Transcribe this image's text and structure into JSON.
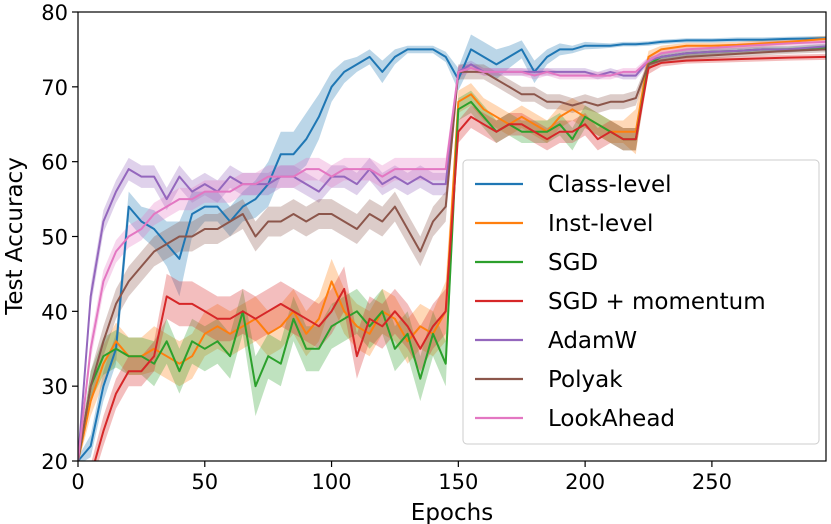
{
  "chart_data": {
    "type": "line",
    "title": "",
    "xlabel": "Epochs",
    "ylabel": "Test Accuracy",
    "xlim": [
      0,
      295
    ],
    "ylim": [
      20,
      80
    ],
    "xticks": [
      0,
      50,
      100,
      150,
      200,
      250
    ],
    "yticks": [
      20,
      30,
      40,
      50,
      60,
      70,
      80
    ],
    "grid": false,
    "legend_position": "center-right",
    "series": [
      {
        "name": "Class-level",
        "color": "#1f77b4",
        "x": [
          0,
          5,
          10,
          15,
          20,
          25,
          30,
          35,
          40,
          45,
          50,
          55,
          60,
          65,
          70,
          75,
          80,
          85,
          90,
          95,
          100,
          105,
          110,
          115,
          120,
          125,
          130,
          135,
          140,
          145,
          150,
          155,
          160,
          165,
          170,
          175,
          180,
          185,
          190,
          195,
          200,
          205,
          210,
          215,
          220,
          225,
          230,
          240,
          250,
          260,
          270,
          280,
          295
        ],
        "y": [
          20,
          22,
          30,
          35,
          54,
          52,
          51,
          49,
          47,
          53,
          54,
          54,
          52,
          54,
          55,
          57,
          61,
          61,
          63,
          66,
          70,
          72,
          73,
          74,
          72,
          74,
          75,
          75,
          75,
          74,
          71,
          75,
          74,
          73,
          74,
          75,
          72,
          74,
          75,
          75,
          75.5,
          75.5,
          75.5,
          75.7,
          75.7,
          75.8,
          76,
          76.2,
          76.2,
          76.3,
          76.3,
          76.4,
          76.5
        ],
        "band": [
          0.5,
          1.5,
          2,
          2,
          2,
          2,
          2.5,
          3,
          5,
          3,
          2,
          2,
          2,
          2,
          2.5,
          3,
          3,
          3,
          3.5,
          3,
          2,
          1.5,
          1,
          1,
          1.5,
          1,
          0.5,
          0.5,
          0.5,
          0.7,
          1.5,
          2,
          2,
          2,
          1.5,
          1.2,
          1.5,
          1,
          0.8,
          0.5,
          0.5,
          0.4,
          0.3,
          0.3,
          0.3,
          0.3,
          0.3,
          0.3,
          0.3,
          0.3,
          0.3,
          0.3,
          0.3
        ]
      },
      {
        "name": "Inst-level",
        "color": "#ff7f0e",
        "x": [
          0,
          5,
          10,
          15,
          20,
          25,
          30,
          35,
          40,
          45,
          50,
          55,
          60,
          65,
          70,
          75,
          80,
          85,
          90,
          95,
          100,
          105,
          110,
          115,
          120,
          125,
          130,
          135,
          140,
          145,
          150,
          155,
          160,
          165,
          170,
          175,
          180,
          185,
          190,
          195,
          200,
          205,
          210,
          215,
          220,
          225,
          230,
          240,
          250,
          260,
          270,
          280,
          295
        ],
        "y": [
          20,
          28,
          33,
          36,
          34,
          34,
          35,
          34,
          33,
          34,
          37,
          38,
          37,
          38,
          39,
          37,
          38,
          40,
          37,
          39,
          44,
          40,
          38,
          37,
          40,
          39,
          36,
          38,
          37,
          40,
          68,
          69,
          67,
          66,
          65,
          66,
          65,
          64,
          66,
          67,
          66,
          65,
          64,
          64,
          64,
          74,
          75,
          75.5,
          75.5,
          75.6,
          75.8,
          76,
          76.4
        ],
        "band": [
          0.5,
          2,
          2.5,
          2.5,
          2.5,
          2.5,
          3,
          3,
          3,
          3,
          3,
          3,
          3,
          3,
          3,
          3,
          3,
          3,
          3,
          3,
          3,
          3,
          3,
          3,
          3,
          3,
          3,
          3,
          3,
          4,
          1.5,
          1.5,
          1.5,
          1.5,
          1.5,
          1.5,
          1.5,
          1.5,
          1.5,
          1.5,
          1.5,
          1.5,
          1.5,
          1.5,
          3,
          0.8,
          0.5,
          0.4,
          0.4,
          0.4,
          0.4,
          0.4,
          0.4
        ]
      },
      {
        "name": "SGD",
        "color": "#2ca02c",
        "x": [
          0,
          5,
          10,
          15,
          20,
          25,
          30,
          35,
          40,
          45,
          50,
          55,
          60,
          65,
          70,
          75,
          80,
          85,
          90,
          95,
          100,
          105,
          110,
          115,
          120,
          125,
          130,
          135,
          140,
          145,
          150,
          155,
          160,
          165,
          170,
          175,
          180,
          185,
          190,
          195,
          200,
          205,
          210,
          215,
          220,
          225,
          230,
          240,
          250,
          260,
          270,
          280,
          295
        ],
        "y": [
          20,
          30,
          34,
          35,
          34,
          34,
          33,
          36,
          32,
          36,
          35,
          36,
          34,
          40,
          30,
          34,
          33,
          39,
          35,
          35,
          38,
          39,
          40,
          38,
          40,
          35,
          37,
          31,
          37,
          33,
          67,
          68,
          66,
          64,
          65,
          64,
          64,
          64,
          65,
          63,
          66,
          65,
          64,
          63,
          63,
          73,
          74,
          74.5,
          74.7,
          74.8,
          75,
          75,
          75.3
        ],
        "band": [
          0.5,
          2,
          2.5,
          2.5,
          2.5,
          2.5,
          3,
          3,
          3,
          3,
          3,
          3,
          3,
          3,
          4,
          3,
          3,
          3,
          3,
          3,
          3,
          3,
          3,
          3,
          3,
          3,
          3,
          3,
          3,
          3,
          1.5,
          1.5,
          1.5,
          1.5,
          1.5,
          1.5,
          1.5,
          1.5,
          1.5,
          1.5,
          1.5,
          1.5,
          1.5,
          1.5,
          1.5,
          0.8,
          0.5,
          0.4,
          0.4,
          0.4,
          0.4,
          0.4,
          0.4
        ]
      },
      {
        "name": "SGD + momentum",
        "color": "#d62728",
        "x": [
          0,
          5,
          10,
          15,
          20,
          25,
          30,
          35,
          40,
          45,
          50,
          55,
          60,
          65,
          70,
          75,
          80,
          85,
          90,
          95,
          100,
          105,
          110,
          115,
          120,
          125,
          130,
          135,
          140,
          145,
          150,
          155,
          160,
          165,
          170,
          175,
          180,
          185,
          190,
          195,
          200,
          205,
          210,
          215,
          220,
          225,
          230,
          240,
          250,
          260,
          270,
          280,
          295
        ],
        "y": [
          15,
          18,
          24,
          29,
          32,
          32,
          34,
          42,
          41,
          41,
          40,
          39,
          39,
          40,
          39,
          40,
          41,
          40,
          39,
          38,
          40,
          43,
          34,
          39,
          38,
          40,
          38,
          35,
          38,
          40,
          64,
          66,
          65,
          64,
          65,
          65,
          64,
          63,
          64,
          64,
          65,
          63,
          64,
          63,
          63,
          72.5,
          73.2,
          73.5,
          73.6,
          73.7,
          73.8,
          73.9,
          74
        ],
        "band": [
          0.5,
          1.5,
          2,
          2,
          2,
          2,
          2,
          3,
          3,
          3,
          3,
          3,
          3,
          3,
          3,
          3,
          3,
          3,
          3,
          3,
          3,
          3,
          3,
          3,
          3,
          3,
          3,
          3,
          3,
          3,
          1.5,
          1.5,
          1.5,
          1.5,
          1.5,
          1.5,
          1.5,
          1.5,
          1.5,
          1.5,
          1.5,
          1.5,
          1.5,
          1.5,
          1.5,
          0.8,
          0.5,
          0.4,
          0.4,
          0.4,
          0.4,
          0.4,
          0.4
        ]
      },
      {
        "name": "AdamW",
        "color": "#9467bd",
        "x": [
          0,
          5,
          10,
          15,
          20,
          25,
          30,
          35,
          40,
          45,
          50,
          55,
          60,
          65,
          70,
          75,
          80,
          85,
          90,
          95,
          100,
          105,
          110,
          115,
          120,
          125,
          130,
          135,
          140,
          145,
          150,
          155,
          160,
          165,
          170,
          175,
          180,
          185,
          190,
          195,
          200,
          205,
          210,
          215,
          220,
          225,
          230,
          240,
          250,
          260,
          270,
          280,
          295
        ],
        "y": [
          20,
          42,
          52,
          56,
          59,
          58,
          58,
          55,
          58,
          56,
          57,
          56,
          58,
          57,
          57,
          57,
          58,
          58,
          57,
          56,
          58,
          58,
          57,
          59,
          57,
          58,
          57,
          58,
          57,
          57,
          72,
          73,
          72,
          72,
          72,
          72,
          72,
          72,
          72,
          72,
          72,
          71.5,
          72,
          71.5,
          71.5,
          73.5,
          74,
          74.5,
          74.7,
          74.8,
          75,
          75,
          75.4
        ],
        "band": [
          0.5,
          1.5,
          1.5,
          1.5,
          1.5,
          1.5,
          1.5,
          1.5,
          1.5,
          1.5,
          1.5,
          1.5,
          1.5,
          1.5,
          1.5,
          1.5,
          1.5,
          1.5,
          1.5,
          1.5,
          1.5,
          1.5,
          1.5,
          1.5,
          1.5,
          1.5,
          1.5,
          1.5,
          1.5,
          1.5,
          0.8,
          0.5,
          0.5,
          0.5,
          0.5,
          0.5,
          0.5,
          0.5,
          0.5,
          0.5,
          0.5,
          0.5,
          0.5,
          0.5,
          0.5,
          0.5,
          0.4,
          0.4,
          0.4,
          0.4,
          0.4,
          0.4,
          0.4
        ]
      },
      {
        "name": "Polyak",
        "color": "#8c564b",
        "x": [
          0,
          5,
          10,
          15,
          20,
          25,
          30,
          35,
          40,
          45,
          50,
          55,
          60,
          65,
          70,
          75,
          80,
          85,
          90,
          95,
          100,
          105,
          110,
          115,
          120,
          125,
          130,
          135,
          140,
          145,
          150,
          155,
          160,
          165,
          170,
          175,
          180,
          185,
          190,
          195,
          200,
          205,
          210,
          215,
          220,
          225,
          230,
          240,
          250,
          260,
          270,
          280,
          295
        ],
        "y": [
          20,
          30,
          36,
          41,
          44,
          46,
          48,
          49,
          50,
          50,
          51,
          51,
          52,
          53,
          50,
          52,
          52,
          53,
          52,
          53,
          53,
          52,
          51,
          53,
          52,
          54,
          51,
          48,
          52,
          54,
          72,
          72,
          72,
          71,
          70,
          69,
          69,
          68,
          68,
          67.5,
          68,
          67.5,
          68,
          68,
          68.5,
          73,
          73.5,
          74,
          74.2,
          74.4,
          74.6,
          74.8,
          75
        ],
        "band": [
          0.5,
          2,
          2,
          2,
          2,
          2,
          2,
          2,
          2,
          2,
          2,
          2,
          2,
          2,
          2,
          2,
          2,
          2,
          2,
          2,
          2,
          2,
          2,
          2,
          2,
          2,
          2,
          2,
          2,
          2,
          1,
          1,
          1,
          1,
          1,
          1,
          1,
          1,
          1,
          1,
          1,
          1,
          1,
          1,
          1,
          0.6,
          0.4,
          0.4,
          0.4,
          0.4,
          0.4,
          0.4,
          0.4
        ]
      },
      {
        "name": "LookAhead",
        "color": "#e377c2",
        "x": [
          0,
          5,
          10,
          15,
          20,
          25,
          30,
          35,
          40,
          45,
          50,
          55,
          60,
          65,
          70,
          75,
          80,
          85,
          90,
          95,
          100,
          105,
          110,
          115,
          120,
          125,
          130,
          135,
          140,
          145,
          150,
          155,
          160,
          165,
          170,
          175,
          180,
          185,
          190,
          195,
          200,
          205,
          210,
          215,
          220,
          225,
          230,
          240,
          250,
          260,
          270,
          280,
          295
        ],
        "y": [
          20,
          35,
          44,
          48,
          50,
          51,
          53,
          54,
          55,
          55,
          56,
          56,
          56,
          57,
          57,
          58,
          58,
          58,
          59,
          59,
          58,
          59,
          59,
          59,
          58,
          59,
          59,
          59,
          59,
          59,
          72,
          72.5,
          72,
          72,
          72,
          72,
          71.5,
          72,
          71.5,
          71.5,
          71.5,
          71.5,
          71.5,
          72,
          72,
          73.5,
          74.5,
          75,
          75.2,
          75.4,
          75.6,
          75.8,
          76
        ],
        "band": [
          0.5,
          1.5,
          1.5,
          1.5,
          1.5,
          1.5,
          1.5,
          1.5,
          1.5,
          1.5,
          1.5,
          1.5,
          1.5,
          1.5,
          1.5,
          1.5,
          1.5,
          1.5,
          1.5,
          1.5,
          1.5,
          1.5,
          1.5,
          1.5,
          1.5,
          1.5,
          1.5,
          1.5,
          1.5,
          1.5,
          0.8,
          0.5,
          0.5,
          0.5,
          0.5,
          0.5,
          0.5,
          0.5,
          0.5,
          0.5,
          0.5,
          0.5,
          0.5,
          0.5,
          0.5,
          0.5,
          0.4,
          0.4,
          0.4,
          0.4,
          0.4,
          0.4,
          0.4
        ]
      }
    ]
  }
}
